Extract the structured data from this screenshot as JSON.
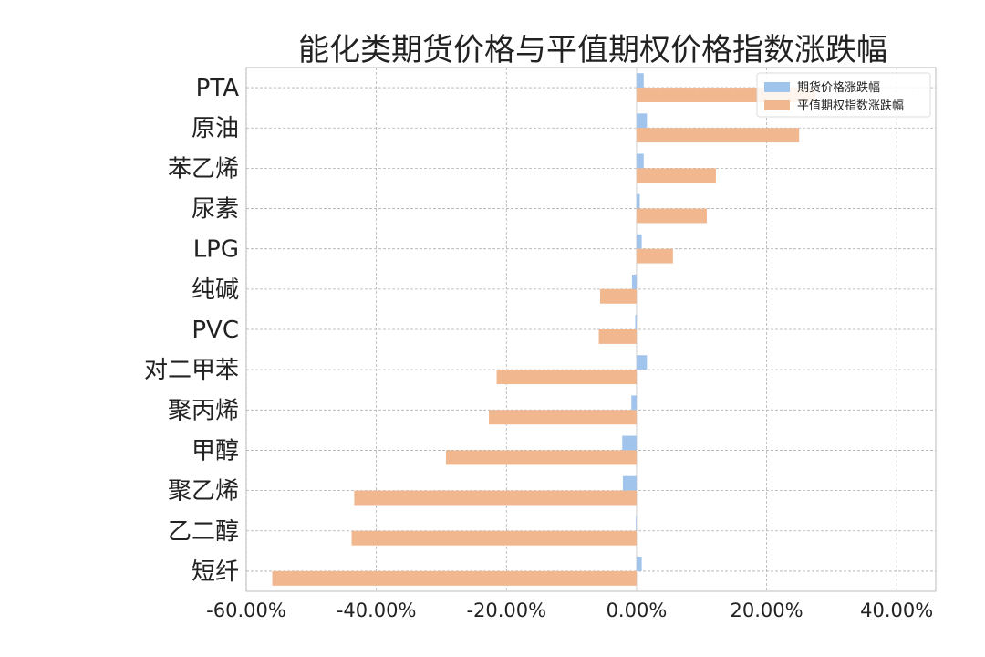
{
  "chart_data": {
    "type": "bar",
    "orientation": "horizontal",
    "title": "能化类期货价格与平值期权价格指数涨跌幅",
    "xlabel": "",
    "ylabel": "",
    "categories": [
      "PTA",
      "原油",
      "苯乙烯",
      "尿素",
      "LPG",
      "纯碱",
      "PVC",
      "对二甲苯",
      "聚丙烯",
      "甲醇",
      "聚乙烯",
      "乙二醇",
      "短纤"
    ],
    "series": [
      {
        "name": "期货价格涨跌幅",
        "color": "#a1c4ec",
        "values": [
          0.011,
          0.016,
          0.011,
          0.005,
          0.008,
          -0.007,
          -0.002,
          0.016,
          -0.008,
          -0.022,
          -0.021,
          -0.001,
          0.008
        ]
      },
      {
        "name": "平值期权指数涨跌幅",
        "color": "#f1b890",
        "values": [
          0.275,
          0.25,
          0.122,
          0.108,
          0.056,
          -0.056,
          -0.058,
          -0.215,
          -0.227,
          -0.293,
          -0.434,
          -0.438,
          -0.56
        ]
      }
    ],
    "xlim": [
      -0.6,
      0.46
    ],
    "xticks": [
      -0.6,
      -0.4,
      -0.2,
      0.0,
      0.2,
      0.4
    ],
    "xtick_labels": [
      "-60.00%",
      "-40.00%",
      "-20.00%",
      "0.00%",
      "20.00%",
      "40.00%"
    ],
    "grid": true,
    "legend_position": "top-right"
  }
}
